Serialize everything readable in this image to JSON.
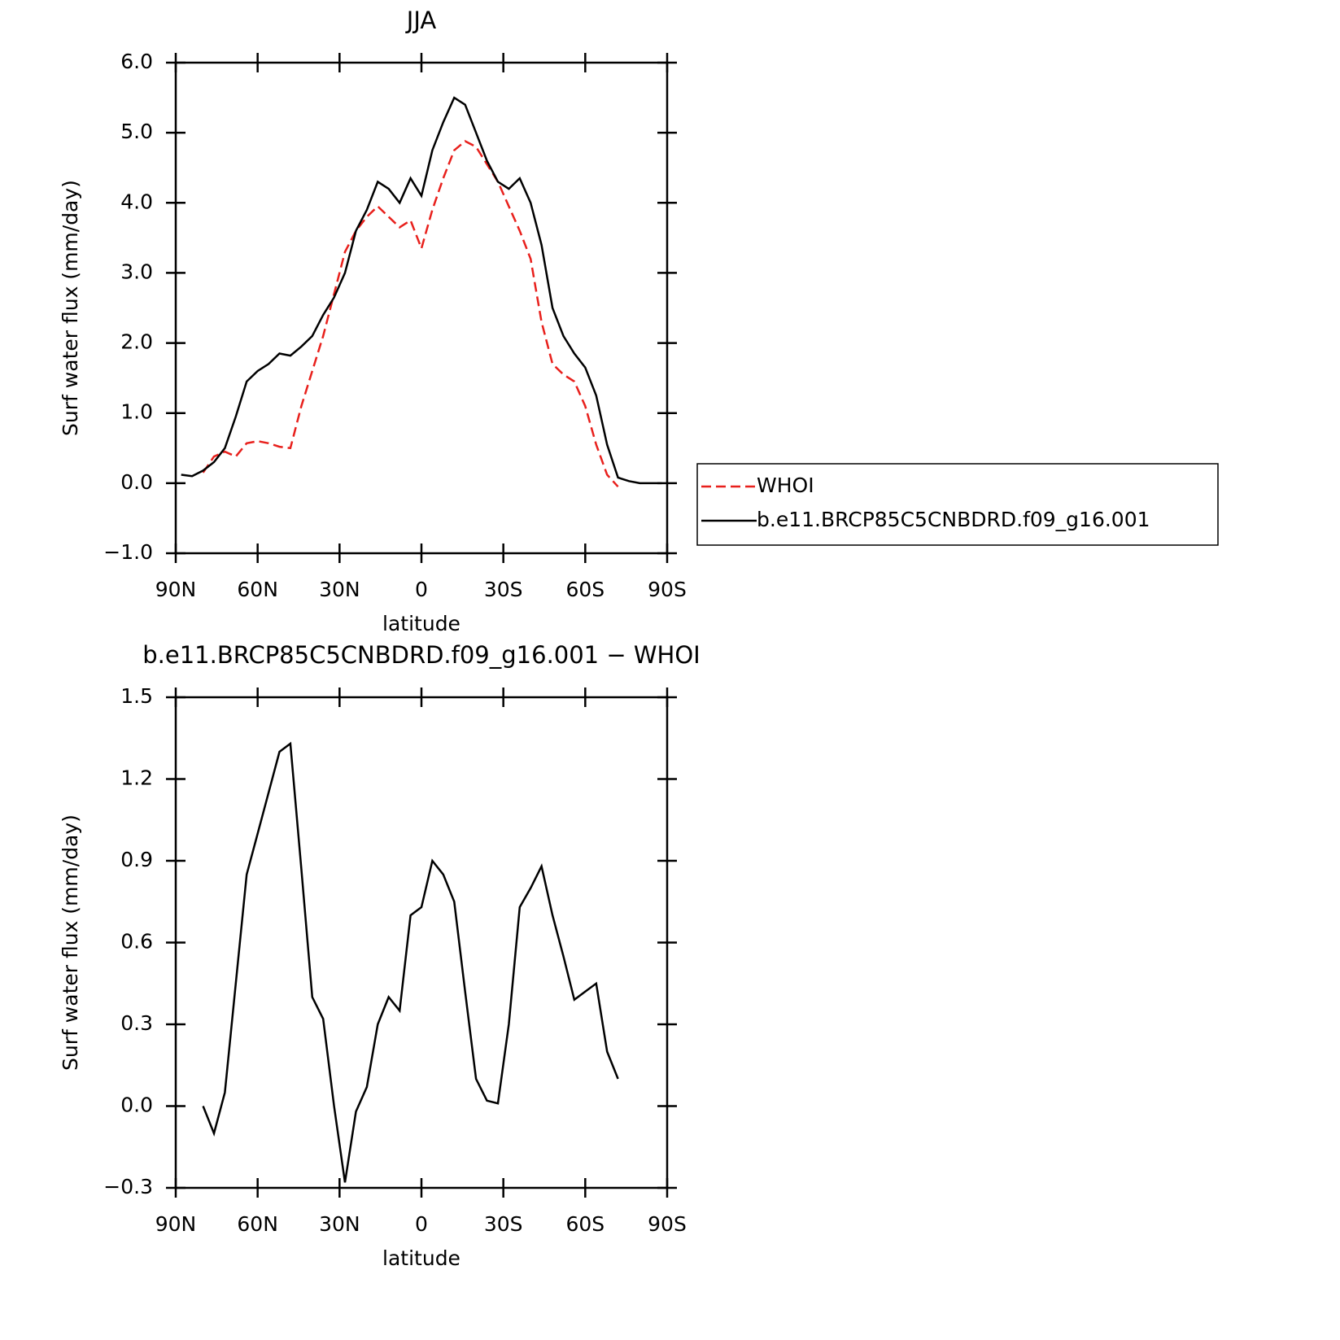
{
  "chart_data": [
    {
      "type": "line",
      "title": "JJA",
      "xlabel": "latitude",
      "ylabel": "Surf water flux (mm/day)",
      "x": [
        88,
        84,
        80,
        76,
        72,
        68,
        64,
        60,
        56,
        52,
        48,
        44,
        40,
        36,
        32,
        28,
        24,
        20,
        16,
        12,
        8,
        4,
        0,
        -4,
        -8,
        -12,
        -16,
        -20,
        -24,
        -28,
        -32,
        -36,
        -40,
        -44,
        -48,
        -52,
        -56,
        -60,
        -64,
        -68,
        -72,
        -76,
        -80,
        -84,
        -88
      ],
      "series": [
        {
          "name": "WHOI",
          "color": "#e8201c",
          "dashed": true,
          "values": [
            null,
            null,
            0.15,
            0.38,
            0.45,
            0.38,
            0.57,
            0.6,
            0.57,
            0.52,
            0.5,
            1.1,
            1.6,
            2.1,
            2.7,
            3.3,
            3.6,
            3.8,
            3.95,
            3.8,
            3.65,
            3.75,
            3.35,
            3.9,
            4.35,
            4.75,
            4.88,
            4.8,
            4.55,
            4.3,
            3.95,
            3.6,
            3.2,
            2.3,
            1.7,
            1.55,
            1.45,
            1.1,
            0.55,
            0.12,
            -0.05,
            null,
            null,
            null,
            null
          ]
        },
        {
          "name": "b.e11.BRCP85C5CNBDRD.f09_g16.001",
          "color": "#000000",
          "dashed": false,
          "values": [
            0.12,
            0.1,
            0.18,
            0.3,
            0.5,
            0.95,
            1.45,
            1.6,
            1.7,
            1.85,
            1.82,
            1.95,
            2.1,
            2.4,
            2.65,
            3.0,
            3.6,
            3.9,
            4.3,
            4.2,
            4.0,
            4.35,
            4.1,
            4.75,
            5.15,
            5.5,
            5.4,
            5.0,
            4.6,
            4.3,
            4.2,
            4.35,
            4.0,
            3.4,
            2.5,
            2.1,
            1.85,
            1.65,
            1.25,
            0.55,
            0.08,
            0.03,
            0.0,
            0.0,
            0.0
          ]
        }
      ],
      "xlim": [
        90,
        -90
      ],
      "xticks": [
        {
          "value": 90,
          "label": "90N"
        },
        {
          "value": 60,
          "label": "60N"
        },
        {
          "value": 30,
          "label": "30N"
        },
        0,
        {
          "value": -30,
          "label": "30S"
        },
        {
          "value": -60,
          "label": "60S"
        },
        {
          "value": -90,
          "label": "90S"
        }
      ],
      "ylim": [
        -1,
        6
      ],
      "yticks": [
        {
          "value": -1,
          "label": "−1.0"
        },
        {
          "value": 0,
          "label": "0.0"
        },
        {
          "value": 1,
          "label": "1.0"
        },
        {
          "value": 2,
          "label": "2.0"
        },
        {
          "value": 3,
          "label": "3.0"
        },
        {
          "value": 4,
          "label": "4.0"
        },
        {
          "value": 5,
          "label": "5.0"
        },
        {
          "value": 6,
          "label": "6.0"
        }
      ],
      "legend": "right"
    },
    {
      "type": "line",
      "title": "b.e11.BRCP85C5CNBDRD.f09_g16.001 − WHOI",
      "xlabel": "latitude",
      "ylabel": "Surf water flux (mm/day)",
      "x": [
        88,
        84,
        80,
        76,
        72,
        68,
        64,
        60,
        56,
        52,
        48,
        44,
        40,
        36,
        32,
        28,
        24,
        20,
        16,
        12,
        8,
        4,
        0,
        -4,
        -8,
        -12,
        -16,
        -20,
        -24,
        -28,
        -32,
        -36,
        -40,
        -44,
        -48,
        -52,
        -56,
        -60,
        -64,
        -68,
        -72,
        -76,
        -80,
        -84,
        -88
      ],
      "series": [
        {
          "color": "#000000",
          "values": [
            null,
            null,
            0.0,
            -0.1,
            0.05,
            0.45,
            0.85,
            1.0,
            1.15,
            1.3,
            1.33,
            0.87,
            0.4,
            0.32,
            0.0,
            -0.28,
            -0.02,
            0.07,
            0.3,
            0.4,
            0.35,
            0.7,
            0.73,
            0.9,
            0.85,
            0.75,
            0.42,
            0.1,
            0.02,
            0.01,
            0.3,
            0.73,
            0.8,
            0.88,
            0.7,
            0.55,
            0.39,
            0.42,
            0.45,
            0.2,
            0.1,
            null,
            null,
            null,
            null
          ]
        }
      ],
      "xlim": [
        90,
        -90
      ],
      "xticks": [
        {
          "value": 90,
          "label": "90N"
        },
        {
          "value": 60,
          "label": "60N"
        },
        {
          "value": 30,
          "label": "30N"
        },
        0,
        {
          "value": -30,
          "label": "30S"
        },
        {
          "value": -60,
          "label": "60S"
        },
        {
          "value": -90,
          "label": "90S"
        }
      ],
      "ylim": [
        -0.3,
        1.5
      ],
      "yticks": [
        {
          "value": -0.3,
          "label": "−0.3"
        },
        {
          "value": 0,
          "label": "0.0"
        },
        {
          "value": 0.3,
          "label": "0.3"
        },
        {
          "value": 0.6,
          "label": "0.6"
        },
        {
          "value": 0.9,
          "label": "0.9"
        },
        {
          "value": 1.2,
          "label": "1.2"
        },
        {
          "value": 1.5,
          "label": "1.5"
        }
      ]
    }
  ]
}
